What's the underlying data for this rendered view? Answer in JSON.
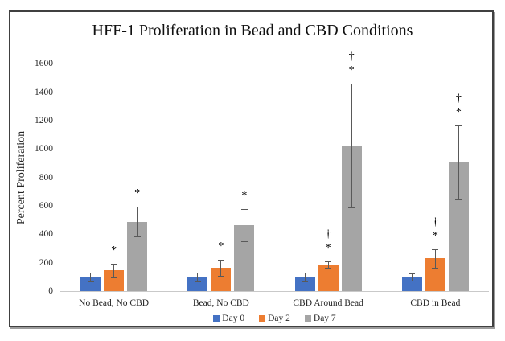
{
  "chart_data": {
    "type": "bar",
    "title": "HFF-1 Proliferation in Bead and CBD Conditions",
    "xlabel": "",
    "ylabel": "Percent Proliferation",
    "ylim": [
      0,
      1600
    ],
    "yticks": [
      0,
      200,
      400,
      600,
      800,
      1000,
      1200,
      1400,
      1600
    ],
    "grid": false,
    "legend_position": "bottom",
    "categories": [
      "No Bead, No CBD",
      "Bead, No CBD",
      "CBD Around Bead",
      "CBD in Bead"
    ],
    "series": [
      {
        "name": "Day 0",
        "color": "#4472C4",
        "values": [
          100,
          100,
          100,
          100
        ],
        "errors": [
          30,
          33,
          30,
          27
        ],
        "annotations": [
          [],
          [],
          [],
          []
        ]
      },
      {
        "name": "Day 2",
        "color": "#ED7D31",
        "values": [
          145,
          165,
          185,
          230
        ],
        "errors": [
          48,
          58,
          22,
          63
        ],
        "annotations": [
          [
            "*"
          ],
          [
            "*"
          ],
          [
            "†",
            "*"
          ],
          [
            "†",
            "*"
          ]
        ]
      },
      {
        "name": "Day 7",
        "color": "#A5A5A5",
        "values": [
          488,
          465,
          1025,
          905
        ],
        "errors": [
          105,
          115,
          435,
          260
        ],
        "annotations": [
          [
            "*"
          ],
          [
            "*"
          ],
          [
            "†",
            "*"
          ],
          [
            "†",
            "*"
          ]
        ]
      }
    ],
    "annotation_symbols": [
      "*",
      "†"
    ]
  }
}
